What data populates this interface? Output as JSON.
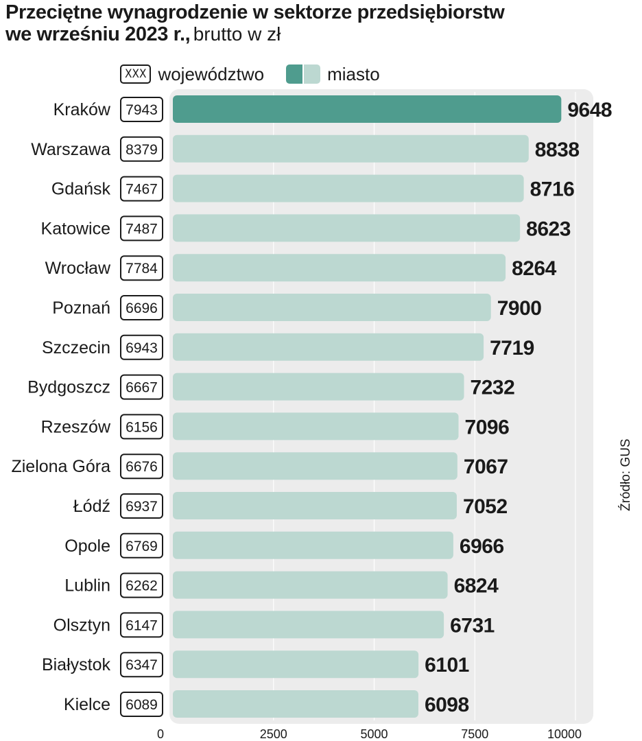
{
  "title_line1": "Przeciętne wynagrodzenie w sektorze przedsiębiorstw",
  "title_line2_bold": "we wrześniu 2023 r.,",
  "title_line2_normal": "brutto w zł",
  "legend": {
    "region_box": "XXX",
    "region_label": "województwo",
    "city_label": "miasto"
  },
  "source": "Źródło: GUS",
  "colors": {
    "highlight": "#4f9c8e",
    "bar": "#bcd8d1",
    "plot_bg": "#ececec"
  },
  "chart_data": {
    "type": "bar",
    "orientation": "horizontal",
    "categories": [
      "Kraków",
      "Warszawa",
      "Gdańsk",
      "Katowice",
      "Wrocław",
      "Poznań",
      "Szczecin",
      "Bydgoszcz",
      "Rzeszów",
      "Zielona Góra",
      "Łódź",
      "Opole",
      "Lublin",
      "Olsztyn",
      "Białystok",
      "Kielce"
    ],
    "series": [
      {
        "name": "miasto",
        "values": [
          9648,
          8838,
          8716,
          8623,
          8264,
          7900,
          7719,
          7232,
          7096,
          7067,
          7052,
          6966,
          6824,
          6731,
          6101,
          6098
        ]
      },
      {
        "name": "województwo",
        "values": [
          7943,
          8379,
          7467,
          7487,
          7784,
          6696,
          6943,
          6667,
          6156,
          6676,
          6937,
          6769,
          6262,
          6147,
          6347,
          6089
        ]
      }
    ],
    "highlight_index": 0,
    "xlim": [
      0,
      10000
    ],
    "xticks": [
      "0",
      "2500",
      "5000",
      "7500",
      "10000"
    ],
    "grid": true
  }
}
